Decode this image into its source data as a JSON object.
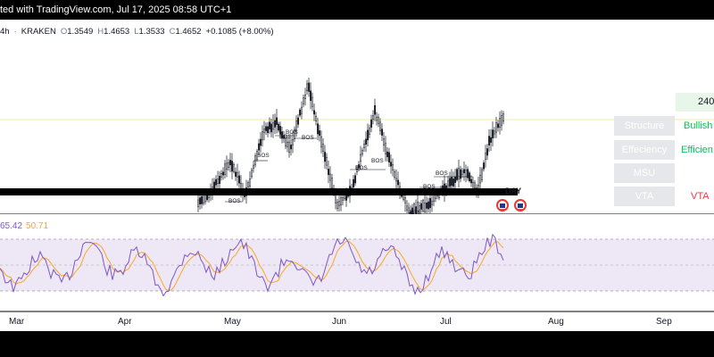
{
  "header": {
    "publisher_text": "ted with TradingView.com, Jul 17, 2025 08:58 UTC+1"
  },
  "symbol": {
    "timeframe": "4h",
    "separator": "·",
    "exchange": "KRAKEN",
    "open_label": "O",
    "open": "1.3549",
    "high_label": "H",
    "high": "1.4653",
    "low_label": "L",
    "low": "1.3533",
    "close_label": "C",
    "close": "1.4652",
    "change": "+0.1085 (+8.00%)"
  },
  "price_label": "240",
  "structure_table": {
    "rows": [
      {
        "label": "Structure",
        "value": "Bullish",
        "value_color": "#00c853"
      },
      {
        "label": "Effeciency",
        "value": "Efficien",
        "value_color": "#00c853"
      },
      {
        "label": "MSU",
        "value": "",
        "value_color": "#00c853"
      },
      {
        "label": "VTA",
        "value": "VTA",
        "value_color": "#f23645"
      }
    ]
  },
  "chart_annotations": {
    "bos": [
      "BOS",
      "BOS",
      "BOS",
      "BOS",
      "BOS",
      "BOS",
      "BOS",
      "BOS",
      "BOS",
      "BOS"
    ],
    "day_label": "DAY"
  },
  "rsi": {
    "rsi_value": "65.42",
    "ma_value": "50.71",
    "rsi_color": "#7e57c2",
    "ma_color": "#f9a825",
    "band_fill": "#ede7f6"
  },
  "time_axis": {
    "labels": [
      "Mar",
      "Apr",
      "May",
      "Jun",
      "Jul",
      "Aug",
      "Sep"
    ]
  },
  "colors": {
    "candle": "#131722",
    "topbar": "#000000",
    "positive": "#089981"
  }
}
